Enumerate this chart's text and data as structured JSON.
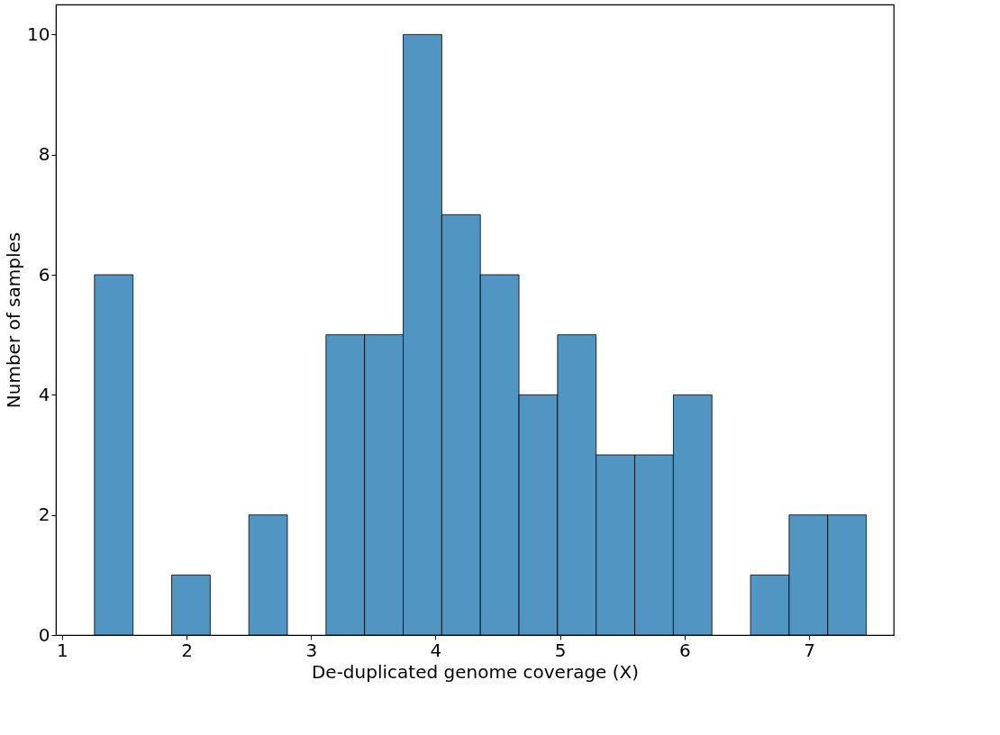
{
  "chart_data": {
    "type": "histogram",
    "xlabel": "De-duplicated genome coverage (X)",
    "ylabel": "Number of samples",
    "bins": [
      1.26,
      1.57,
      1.88,
      2.19,
      2.5,
      2.81,
      3.12,
      3.43,
      3.74,
      4.05,
      4.36,
      4.67,
      4.98,
      5.29,
      5.6,
      5.91,
      6.22,
      6.53,
      6.84,
      7.15,
      7.46
    ],
    "values": [
      6,
      0,
      1,
      0,
      2,
      0,
      5,
      5,
      10,
      7,
      6,
      4,
      5,
      3,
      3,
      4,
      0,
      1,
      2,
      2
    ],
    "color": "#5195c3",
    "xlim": [
      0.95,
      7.68
    ],
    "xticks": [
      1,
      2,
      3,
      4,
      5,
      6,
      7
    ],
    "ylim": [
      0,
      10.5
    ],
    "yticks": [
      0,
      2,
      4,
      6,
      8,
      10
    ],
    "grid": false
  }
}
